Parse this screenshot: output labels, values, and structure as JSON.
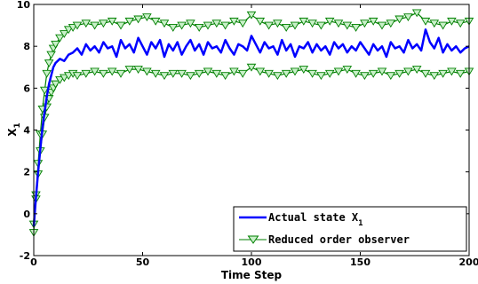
{
  "chart_data": {
    "type": "line",
    "title": "",
    "xlabel": "Time Step",
    "ylabel": "X",
    "ylabel_subscript": "1",
    "xlim": [
      0,
      200
    ],
    "ylim": [
      -2,
      10
    ],
    "xticks": [
      0,
      50,
      100,
      150,
      200
    ],
    "yticks": [
      -2,
      0,
      2,
      4,
      6,
      8,
      10
    ],
    "grid": false,
    "legend_position": "bottom-right",
    "series": [
      {
        "name": "Actual state X",
        "name_subscript": "1",
        "color": "#0000ff",
        "marker": "none",
        "x": [
          0,
          1,
          2,
          3,
          4,
          5,
          6,
          7,
          8,
          9,
          10,
          12,
          14,
          16,
          18,
          20,
          22,
          24,
          26,
          28,
          30,
          32,
          34,
          36,
          38,
          40,
          42,
          44,
          46,
          48,
          50,
          52,
          54,
          56,
          58,
          60,
          62,
          64,
          66,
          68,
          70,
          72,
          74,
          76,
          78,
          80,
          82,
          84,
          86,
          88,
          90,
          92,
          94,
          96,
          98,
          100,
          102,
          104,
          106,
          108,
          110,
          112,
          114,
          116,
          118,
          120,
          122,
          124,
          126,
          128,
          130,
          132,
          134,
          136,
          138,
          140,
          142,
          144,
          146,
          148,
          150,
          152,
          154,
          156,
          158,
          160,
          162,
          164,
          166,
          168,
          170,
          172,
          174,
          176,
          178,
          180,
          182,
          184,
          186,
          188,
          190,
          192,
          194,
          196,
          198,
          200
        ],
        "values": [
          -0.6,
          0.8,
          2.0,
          3.1,
          4.1,
          4.9,
          5.6,
          6.2,
          6.6,
          7.0,
          7.2,
          7.4,
          7.3,
          7.6,
          7.7,
          7.9,
          7.6,
          8.1,
          7.8,
          8.0,
          7.7,
          8.2,
          7.9,
          8.0,
          7.5,
          8.3,
          7.9,
          8.1,
          7.7,
          8.4,
          8.0,
          7.6,
          8.2,
          7.9,
          8.3,
          7.5,
          8.1,
          7.8,
          8.2,
          7.6,
          8.0,
          8.3,
          7.8,
          8.1,
          7.6,
          8.2,
          7.9,
          8.0,
          7.7,
          8.3,
          7.9,
          7.6,
          8.1,
          8.0,
          7.8,
          8.5,
          8.1,
          7.7,
          8.2,
          7.9,
          8.0,
          7.6,
          8.3,
          7.8,
          8.1,
          7.5,
          8.0,
          7.9,
          8.2,
          7.7,
          8.1,
          7.8,
          8.0,
          7.6,
          8.2,
          7.9,
          8.1,
          7.7,
          8.0,
          7.8,
          8.2,
          7.9,
          7.6,
          8.1,
          7.8,
          8.0,
          7.5,
          8.2,
          7.9,
          8.0,
          7.7,
          8.3,
          7.9,
          8.1,
          7.8,
          8.8,
          8.2,
          7.9,
          8.4,
          7.7,
          8.1,
          7.8,
          8.0,
          7.7,
          7.9,
          8.0
        ]
      },
      {
        "name": "Reduced order observer",
        "color": "#007f00",
        "marker": "triangle-down",
        "band": "upper",
        "x": [
          0,
          1,
          2,
          3,
          4,
          5,
          6,
          7,
          8,
          9,
          10,
          12,
          14,
          16,
          18,
          20,
          24,
          28,
          32,
          36,
          40,
          44,
          48,
          52,
          56,
          60,
          64,
          68,
          72,
          76,
          80,
          84,
          88,
          92,
          96,
          100,
          104,
          108,
          112,
          116,
          120,
          124,
          128,
          132,
          136,
          140,
          144,
          148,
          152,
          156,
          160,
          164,
          168,
          172,
          176,
          180,
          184,
          188,
          192,
          196,
          200
        ],
        "values": [
          -0.9,
          0.9,
          2.4,
          3.8,
          5.0,
          5.9,
          6.7,
          7.2,
          7.6,
          7.9,
          8.1,
          8.4,
          8.6,
          8.8,
          8.9,
          9.0,
          9.1,
          9.0,
          9.1,
          9.2,
          9.0,
          9.2,
          9.3,
          9.4,
          9.2,
          9.1,
          8.9,
          9.0,
          9.1,
          8.9,
          9.0,
          9.1,
          9.0,
          9.2,
          9.1,
          9.5,
          9.2,
          9.0,
          9.1,
          8.9,
          9.0,
          9.2,
          9.1,
          9.0,
          9.2,
          9.1,
          9.0,
          8.9,
          9.1,
          9.2,
          9.0,
          9.1,
          9.3,
          9.4,
          9.6,
          9.2,
          9.1,
          9.0,
          9.2,
          9.1,
          9.2
        ]
      },
      {
        "name": "Reduced order observer (lower)",
        "color": "#007f00",
        "marker": "triangle-down",
        "band": "lower",
        "legend": false,
        "x": [
          0,
          1,
          2,
          3,
          4,
          5,
          6,
          7,
          8,
          9,
          10,
          12,
          14,
          16,
          18,
          20,
          24,
          28,
          32,
          36,
          40,
          44,
          48,
          52,
          56,
          60,
          64,
          68,
          72,
          76,
          80,
          84,
          88,
          92,
          96,
          100,
          104,
          108,
          112,
          116,
          120,
          124,
          128,
          132,
          136,
          140,
          144,
          148,
          152,
          156,
          160,
          164,
          168,
          172,
          176,
          180,
          184,
          188,
          192,
          196,
          200
        ],
        "values": [
          -0.5,
          0.7,
          1.9,
          3.0,
          3.8,
          4.6,
          5.1,
          5.5,
          5.8,
          6.0,
          6.2,
          6.4,
          6.5,
          6.6,
          6.7,
          6.6,
          6.7,
          6.8,
          6.7,
          6.8,
          6.7,
          6.9,
          6.9,
          6.8,
          6.7,
          6.6,
          6.7,
          6.7,
          6.6,
          6.7,
          6.8,
          6.7,
          6.6,
          6.8,
          6.7,
          7.0,
          6.8,
          6.7,
          6.6,
          6.7,
          6.8,
          6.9,
          6.7,
          6.6,
          6.7,
          6.8,
          6.9,
          6.7,
          6.6,
          6.7,
          6.8,
          6.6,
          6.7,
          6.8,
          6.9,
          6.7,
          6.6,
          6.7,
          6.8,
          6.7,
          6.8
        ]
      }
    ]
  }
}
